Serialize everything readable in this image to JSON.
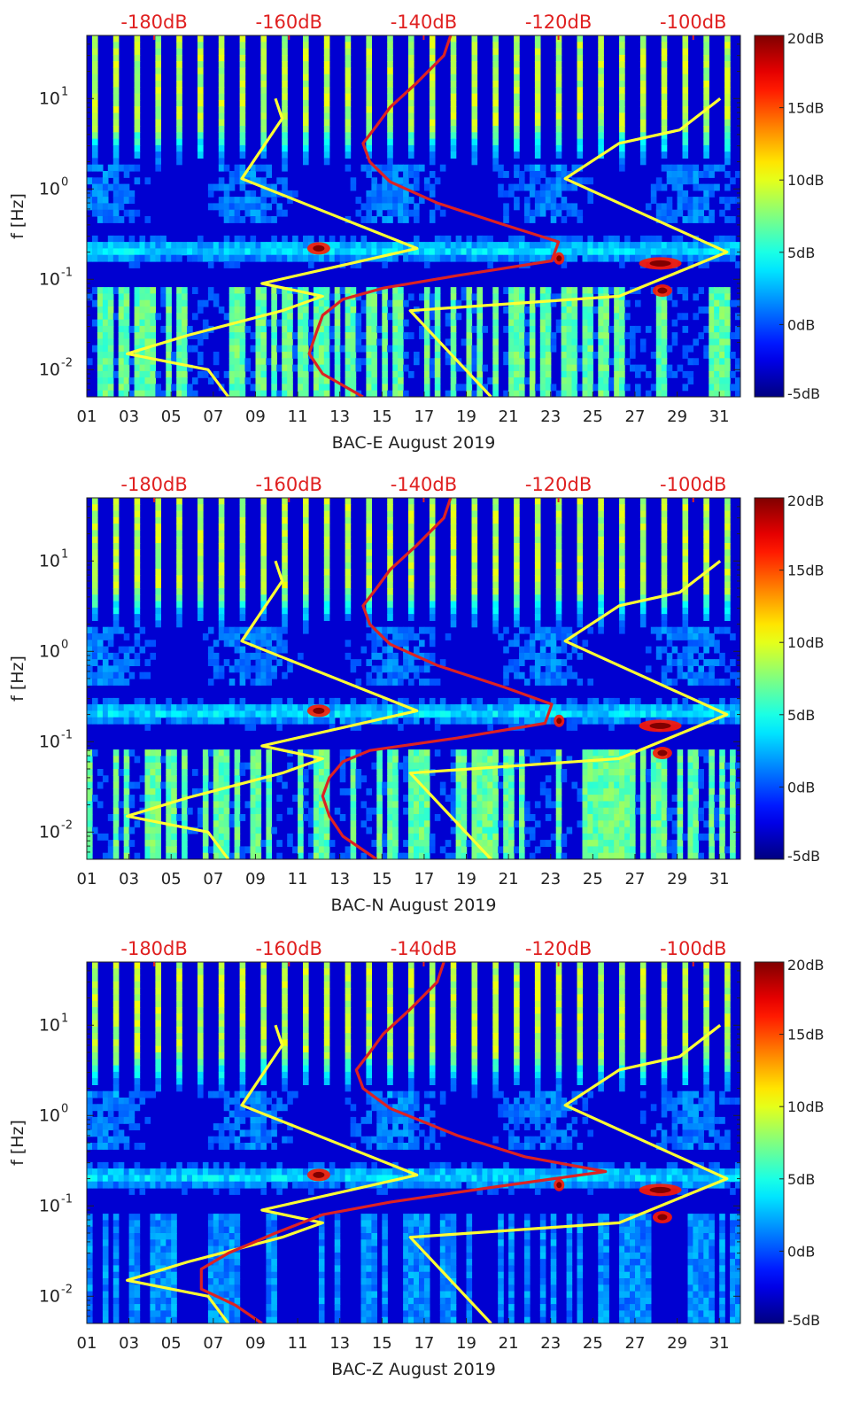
{
  "chart_data": [
    {
      "type": "heatmap",
      "station": "BAC-E",
      "xlabel": "BAC-E August 2019",
      "ylabel": "f [Hz]",
      "x_ticks": [
        "01",
        "03",
        "05",
        "07",
        "09",
        "11",
        "13",
        "15",
        "17",
        "19",
        "21",
        "23",
        "25",
        "27",
        "29",
        "31"
      ],
      "y_ticks": [
        "10^-2",
        "10^-1",
        "10^0",
        "10^1"
      ],
      "top_ticks": [
        "-180dB",
        "-160dB",
        "-140dB",
        "-120dB",
        "-100dB"
      ],
      "colorbar_ticks": [
        "20dB",
        "15dB",
        "10dB",
        "5dB",
        "0dB",
        "-5dB"
      ],
      "xlim": [
        1,
        32
      ],
      "ylim_hz": [
        0.005,
        50
      ],
      "clim_db": [
        -5,
        20
      ],
      "top_axis_db": [
        -190,
        -93
      ],
      "colors": {
        "noise_model": "#ffff33",
        "station_median": "#dd2222",
        "top_labels": "#e02020"
      },
      "noise_models": [
        {
          "name": "low_noise_model",
          "points": [
            [
              0.005,
              -169
            ],
            [
              0.01,
              -172
            ],
            [
              0.015,
              -184
            ],
            [
              0.024,
              -175
            ],
            [
              0.045,
              -161
            ],
            [
              0.065,
              -155
            ],
            [
              0.09,
              -164
            ],
            [
              0.22,
              -141
            ],
            [
              1.3,
              -167
            ],
            [
              6,
              -161
            ],
            [
              10,
              -162
            ]
          ]
        },
        {
          "name": "high_noise_model",
          "points": [
            [
              0.005,
              -130
            ],
            [
              0.045,
              -142
            ],
            [
              0.065,
              -111
            ],
            [
              0.2,
              -95
            ],
            [
              1.3,
              -119
            ],
            [
              3.2,
              -111
            ],
            [
              4.5,
              -102
            ],
            [
              10,
              -96
            ]
          ]
        }
      ],
      "station_median": [
        [
          0.005,
          -149
        ],
        [
          0.009,
          -155
        ],
        [
          0.015,
          -157
        ],
        [
          0.025,
          -156
        ],
        [
          0.04,
          -155
        ],
        [
          0.06,
          -152
        ],
        [
          0.08,
          -146
        ],
        [
          0.11,
          -135
        ],
        [
          0.16,
          -121
        ],
        [
          0.26,
          -120
        ],
        [
          0.4,
          -128
        ],
        [
          0.7,
          -138
        ],
        [
          1.2,
          -145
        ],
        [
          2,
          -148
        ],
        [
          3.2,
          -149
        ],
        [
          5,
          -147
        ],
        [
          8,
          -145
        ],
        [
          15,
          -141
        ],
        [
          30,
          -137
        ],
        [
          50,
          -136
        ]
      ]
    },
    {
      "type": "heatmap",
      "station": "BAC-N",
      "xlabel": "BAC-N August 2019",
      "ylabel": "f [Hz]",
      "x_ticks": [
        "01",
        "03",
        "05",
        "07",
        "09",
        "11",
        "13",
        "15",
        "17",
        "19",
        "21",
        "23",
        "25",
        "27",
        "29",
        "31"
      ],
      "y_ticks": [
        "10^-2",
        "10^-1",
        "10^0",
        "10^1"
      ],
      "top_ticks": [
        "-180dB",
        "-160dB",
        "-140dB",
        "-120dB",
        "-100dB"
      ],
      "colorbar_ticks": [
        "20dB",
        "15dB",
        "10dB",
        "5dB",
        "0dB",
        "-5dB"
      ],
      "xlim": [
        1,
        32
      ],
      "ylim_hz": [
        0.005,
        50
      ],
      "clim_db": [
        -5,
        20
      ],
      "top_axis_db": [
        -190,
        -93
      ],
      "colors": {
        "noise_model": "#ffff33",
        "station_median": "#dd2222",
        "top_labels": "#e02020"
      },
      "noise_models": [
        {
          "name": "low_noise_model",
          "points": [
            [
              0.005,
              -169
            ],
            [
              0.01,
              -172
            ],
            [
              0.015,
              -184
            ],
            [
              0.024,
              -175
            ],
            [
              0.045,
              -161
            ],
            [
              0.065,
              -155
            ],
            [
              0.09,
              -164
            ],
            [
              0.22,
              -141
            ],
            [
              1.3,
              -167
            ],
            [
              6,
              -161
            ],
            [
              10,
              -162
            ]
          ]
        },
        {
          "name": "high_noise_model",
          "points": [
            [
              0.005,
              -130
            ],
            [
              0.045,
              -142
            ],
            [
              0.065,
              -111
            ],
            [
              0.2,
              -95
            ],
            [
              1.3,
              -119
            ],
            [
              3.2,
              -111
            ],
            [
              4.5,
              -102
            ],
            [
              10,
              -96
            ]
          ]
        }
      ],
      "station_median": [
        [
          0.005,
          -147
        ],
        [
          0.009,
          -152
        ],
        [
          0.015,
          -154
        ],
        [
          0.025,
          -155
        ],
        [
          0.04,
          -154
        ],
        [
          0.06,
          -152
        ],
        [
          0.08,
          -148
        ],
        [
          0.11,
          -135
        ],
        [
          0.16,
          -122
        ],
        [
          0.26,
          -121
        ],
        [
          0.4,
          -128
        ],
        [
          0.7,
          -138
        ],
        [
          1.2,
          -145
        ],
        [
          2,
          -148
        ],
        [
          3.2,
          -149
        ],
        [
          5,
          -147
        ],
        [
          8,
          -145
        ],
        [
          15,
          -141
        ],
        [
          30,
          -137
        ],
        [
          50,
          -136
        ]
      ]
    },
    {
      "type": "heatmap",
      "station": "BAC-Z",
      "xlabel": "BAC-Z August 2019",
      "ylabel": "f [Hz]",
      "x_ticks": [
        "01",
        "03",
        "05",
        "07",
        "09",
        "11",
        "13",
        "15",
        "17",
        "19",
        "21",
        "23",
        "25",
        "27",
        "29",
        "31"
      ],
      "y_ticks": [
        "10^-2",
        "10^-1",
        "10^0",
        "10^1"
      ],
      "top_ticks": [
        "-180dB",
        "-160dB",
        "-140dB",
        "-120dB",
        "-100dB"
      ],
      "colorbar_ticks": [
        "20dB",
        "15dB",
        "10dB",
        "5dB",
        "0dB",
        "-5dB"
      ],
      "xlim": [
        1,
        32
      ],
      "ylim_hz": [
        0.005,
        50
      ],
      "clim_db": [
        -5,
        20
      ],
      "top_axis_db": [
        -190,
        -93
      ],
      "colors": {
        "noise_model": "#ffff33",
        "station_median": "#dd2222",
        "top_labels": "#e02020"
      },
      "noise_models": [
        {
          "name": "low_noise_model",
          "points": [
            [
              0.005,
              -169
            ],
            [
              0.01,
              -172
            ],
            [
              0.015,
              -184
            ],
            [
              0.024,
              -175
            ],
            [
              0.045,
              -161
            ],
            [
              0.065,
              -155
            ],
            [
              0.09,
              -164
            ],
            [
              0.22,
              -141
            ],
            [
              1.3,
              -167
            ],
            [
              6,
              -161
            ],
            [
              10,
              -162
            ]
          ]
        },
        {
          "name": "high_noise_model",
          "points": [
            [
              0.005,
              -130
            ],
            [
              0.045,
              -142
            ],
            [
              0.065,
              -111
            ],
            [
              0.2,
              -95
            ],
            [
              1.3,
              -119
            ],
            [
              3.2,
              -111
            ],
            [
              4.5,
              -102
            ],
            [
              10,
              -96
            ]
          ]
        }
      ],
      "station_median": [
        [
          0.005,
          -164
        ],
        [
          0.008,
          -168
        ],
        [
          0.012,
          -173
        ],
        [
          0.02,
          -173
        ],
        [
          0.03,
          -169
        ],
        [
          0.05,
          -162
        ],
        [
          0.08,
          -155
        ],
        [
          0.11,
          -145
        ],
        [
          0.16,
          -130
        ],
        [
          0.24,
          -113
        ],
        [
          0.35,
          -125
        ],
        [
          0.6,
          -135
        ],
        [
          1.2,
          -145
        ],
        [
          2,
          -149
        ],
        [
          3.2,
          -150
        ],
        [
          5,
          -148
        ],
        [
          8,
          -146
        ],
        [
          15,
          -142
        ],
        [
          30,
          -138
        ],
        [
          50,
          -137
        ]
      ]
    }
  ]
}
